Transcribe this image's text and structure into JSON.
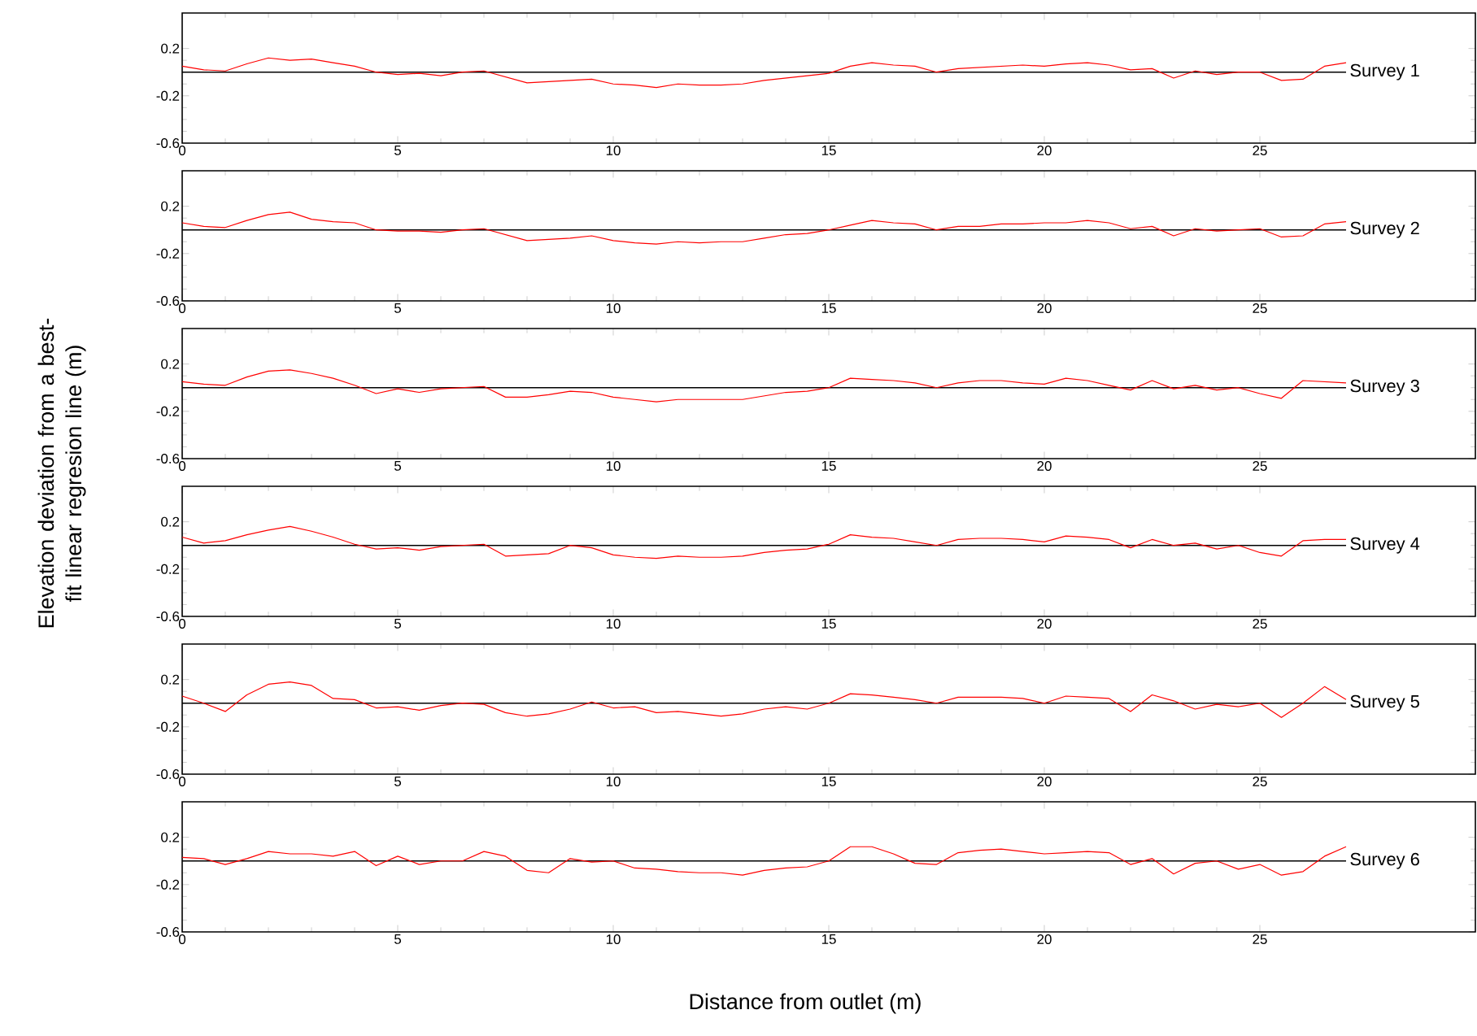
{
  "chart_data": [
    {
      "type": "line",
      "xlim": [
        0,
        30
      ],
      "ylim": [
        -0.6,
        0.5
      ],
      "xticks": [
        0,
        5,
        10,
        15,
        20,
        25
      ],
      "yticks": [
        -0.6,
        -0.2,
        0.2
      ],
      "x": [
        0,
        0.5,
        1,
        1.5,
        2,
        2.5,
        3,
        3.5,
        4,
        4.5,
        5,
        5.5,
        6,
        6.5,
        7,
        7.5,
        8,
        8.5,
        9,
        9.5,
        10,
        10.5,
        11,
        11.5,
        12,
        12.5,
        13,
        13.5,
        14,
        14.5,
        15,
        15.5,
        16,
        16.5,
        17,
        17.5,
        18,
        18.5,
        19,
        19.5,
        20,
        20.5,
        21,
        21.5,
        22,
        22.5,
        23,
        23.5,
        24,
        24.5,
        25,
        25.5,
        26,
        26.5,
        27
      ],
      "series": [
        {
          "color": "#ff0000",
          "values": [
            0.05,
            0.02,
            0.01,
            0.07,
            0.12,
            0.1,
            0.11,
            0.08,
            0.05,
            0.0,
            -0.02,
            -0.01,
            -0.03,
            0.0,
            0.01,
            -0.04,
            -0.09,
            -0.08,
            -0.07,
            -0.06,
            -0.1,
            -0.11,
            -0.13,
            -0.1,
            -0.11,
            -0.11,
            -0.1,
            -0.07,
            -0.05,
            -0.03,
            -0.01,
            0.05,
            0.08,
            0.06,
            0.05,
            0.0,
            0.03,
            0.04,
            0.05,
            0.06,
            0.05,
            0.07,
            0.08,
            0.06,
            0.02,
            0.03,
            -0.05,
            0.01,
            -0.02,
            0.0,
            0.0,
            -0.07,
            -0.06,
            0.05,
            0.08
          ]
        }
      ],
      "ref_lines": [
        {
          "axis": "y",
          "value": 0,
          "label": "Survey 1",
          "color": "#000000"
        }
      ]
    },
    {
      "type": "line",
      "xlim": [
        0,
        30
      ],
      "ylim": [
        -0.6,
        0.5
      ],
      "xticks": [
        0,
        5,
        10,
        15,
        20,
        25
      ],
      "yticks": [
        -0.6,
        -0.2,
        0.2
      ],
      "x": [
        0,
        0.5,
        1,
        1.5,
        2,
        2.5,
        3,
        3.5,
        4,
        4.5,
        5,
        5.5,
        6,
        6.5,
        7,
        7.5,
        8,
        8.5,
        9,
        9.5,
        10,
        10.5,
        11,
        11.5,
        12,
        12.5,
        13,
        13.5,
        14,
        14.5,
        15,
        15.5,
        16,
        16.5,
        17,
        17.5,
        18,
        18.5,
        19,
        19.5,
        20,
        20.5,
        21,
        21.5,
        22,
        22.5,
        23,
        23.5,
        24,
        24.5,
        25,
        25.5,
        26,
        26.5,
        27
      ],
      "series": [
        {
          "color": "#ff0000",
          "values": [
            0.06,
            0.03,
            0.02,
            0.08,
            0.13,
            0.15,
            0.09,
            0.07,
            0.06,
            0.0,
            -0.01,
            -0.01,
            -0.02,
            0.0,
            0.01,
            -0.04,
            -0.09,
            -0.08,
            -0.07,
            -0.05,
            -0.09,
            -0.11,
            -0.12,
            -0.1,
            -0.11,
            -0.1,
            -0.1,
            -0.07,
            -0.04,
            -0.03,
            0.0,
            0.04,
            0.08,
            0.06,
            0.05,
            0.0,
            0.03,
            0.03,
            0.05,
            0.05,
            0.06,
            0.06,
            0.08,
            0.06,
            0.01,
            0.03,
            -0.05,
            0.01,
            -0.01,
            0.0,
            0.01,
            -0.06,
            -0.05,
            0.05,
            0.07
          ]
        }
      ],
      "ref_lines": [
        {
          "axis": "y",
          "value": 0,
          "label": "Survey 2",
          "color": "#000000"
        }
      ]
    },
    {
      "type": "line",
      "xlim": [
        0,
        30
      ],
      "ylim": [
        -0.6,
        0.5
      ],
      "xticks": [
        0,
        5,
        10,
        15,
        20,
        25
      ],
      "yticks": [
        -0.6,
        -0.2,
        0.2
      ],
      "ylabel": "Elevation deviation from a best-fit linear regresion line (m)",
      "x": [
        0,
        0.5,
        1,
        1.5,
        2,
        2.5,
        3,
        3.5,
        4,
        4.5,
        5,
        5.5,
        6,
        6.5,
        7,
        7.5,
        8,
        8.5,
        9,
        9.5,
        10,
        10.5,
        11,
        11.5,
        12,
        12.5,
        13,
        13.5,
        14,
        14.5,
        15,
        15.5,
        16,
        16.5,
        17,
        17.5,
        18,
        18.5,
        19,
        19.5,
        20,
        20.5,
        21,
        21.5,
        22,
        22.5,
        23,
        23.5,
        24,
        24.5,
        25,
        25.5,
        26,
        26.5,
        27
      ],
      "series": [
        {
          "color": "#ff0000",
          "values": [
            0.05,
            0.03,
            0.02,
            0.09,
            0.14,
            0.15,
            0.12,
            0.08,
            0.02,
            -0.05,
            -0.01,
            -0.04,
            -0.01,
            0.0,
            0.01,
            -0.08,
            -0.08,
            -0.06,
            -0.03,
            -0.04,
            -0.08,
            -0.1,
            -0.12,
            -0.1,
            -0.1,
            -0.1,
            -0.1,
            -0.07,
            -0.04,
            -0.03,
            0.0,
            0.08,
            0.07,
            0.06,
            0.04,
            0.0,
            0.04,
            0.06,
            0.06,
            0.04,
            0.03,
            0.08,
            0.06,
            0.02,
            -0.02,
            0.06,
            -0.01,
            0.02,
            -0.02,
            0.0,
            -0.05,
            -0.09,
            0.06,
            0.05,
            0.04
          ]
        }
      ],
      "ref_lines": [
        {
          "axis": "y",
          "value": 0,
          "label": "Survey 3",
          "color": "#000000"
        }
      ]
    },
    {
      "type": "line",
      "xlim": [
        0,
        30
      ],
      "ylim": [
        -0.6,
        0.5
      ],
      "xticks": [
        0,
        5,
        10,
        15,
        20,
        25
      ],
      "yticks": [
        -0.6,
        -0.2,
        0.2
      ],
      "x": [
        0,
        0.5,
        1,
        1.5,
        2,
        2.5,
        3,
        3.5,
        4,
        4.5,
        5,
        5.5,
        6,
        6.5,
        7,
        7.5,
        8,
        8.5,
        9,
        9.5,
        10,
        10.5,
        11,
        11.5,
        12,
        12.5,
        13,
        13.5,
        14,
        14.5,
        15,
        15.5,
        16,
        16.5,
        17,
        17.5,
        18,
        18.5,
        19,
        19.5,
        20,
        20.5,
        21,
        21.5,
        22,
        22.5,
        23,
        23.5,
        24,
        24.5,
        25,
        25.5,
        26,
        26.5,
        27
      ],
      "series": [
        {
          "color": "#ff0000",
          "values": [
            0.07,
            0.02,
            0.04,
            0.09,
            0.13,
            0.16,
            0.12,
            0.07,
            0.01,
            -0.03,
            -0.02,
            -0.04,
            -0.01,
            0.0,
            0.01,
            -0.09,
            -0.08,
            -0.07,
            0.0,
            -0.02,
            -0.08,
            -0.1,
            -0.11,
            -0.09,
            -0.1,
            -0.1,
            -0.09,
            -0.06,
            -0.04,
            -0.03,
            0.01,
            0.09,
            0.07,
            0.06,
            0.03,
            0.0,
            0.05,
            0.06,
            0.06,
            0.05,
            0.03,
            0.08,
            0.07,
            0.05,
            -0.02,
            0.05,
            0.0,
            0.02,
            -0.03,
            0.0,
            -0.06,
            -0.09,
            0.04,
            0.05,
            0.05
          ]
        }
      ],
      "ref_lines": [
        {
          "axis": "y",
          "value": 0,
          "label": "Survey 4",
          "color": "#000000"
        }
      ]
    },
    {
      "type": "line",
      "xlim": [
        0,
        30
      ],
      "ylim": [
        -0.6,
        0.5
      ],
      "xticks": [
        0,
        5,
        10,
        15,
        20,
        25
      ],
      "yticks": [
        -0.6,
        -0.2,
        0.2
      ],
      "x": [
        0,
        0.5,
        1,
        1.5,
        2,
        2.5,
        3,
        3.5,
        4,
        4.5,
        5,
        5.5,
        6,
        6.5,
        7,
        7.5,
        8,
        8.5,
        9,
        9.5,
        10,
        10.5,
        11,
        11.5,
        12,
        12.5,
        13,
        13.5,
        14,
        14.5,
        15,
        15.5,
        16,
        16.5,
        17,
        17.5,
        18,
        18.5,
        19,
        19.5,
        20,
        20.5,
        21,
        21.5,
        22,
        22.5,
        23,
        23.5,
        24,
        24.5,
        25,
        25.5,
        26,
        26.5,
        27
      ],
      "series": [
        {
          "color": "#ff0000",
          "values": [
            0.06,
            0.0,
            -0.07,
            0.07,
            0.16,
            0.18,
            0.15,
            0.04,
            0.03,
            -0.04,
            -0.03,
            -0.06,
            -0.02,
            0.0,
            -0.01,
            -0.08,
            -0.11,
            -0.09,
            -0.05,
            0.01,
            -0.04,
            -0.03,
            -0.08,
            -0.07,
            -0.09,
            -0.11,
            -0.09,
            -0.05,
            -0.03,
            -0.05,
            0.0,
            0.08,
            0.07,
            0.05,
            0.03,
            0.0,
            0.05,
            0.05,
            0.05,
            0.04,
            0.0,
            0.06,
            0.05,
            0.04,
            -0.07,
            0.07,
            0.02,
            -0.05,
            -0.01,
            -0.03,
            0.0,
            -0.12,
            0.0,
            0.14,
            0.03
          ]
        }
      ],
      "ref_lines": [
        {
          "axis": "y",
          "value": 0,
          "label": "Survey 5",
          "color": "#000000"
        }
      ]
    },
    {
      "type": "line",
      "xlim": [
        0,
        30
      ],
      "ylim": [
        -0.6,
        0.5
      ],
      "xticks": [
        0,
        5,
        10,
        15,
        20,
        25
      ],
      "yticks": [
        -0.6,
        -0.2,
        0.2
      ],
      "xlabel": "Distance from outlet (m)",
      "x": [
        0,
        0.5,
        1,
        1.5,
        2,
        2.5,
        3,
        3.5,
        4,
        4.5,
        5,
        5.5,
        6,
        6.5,
        7,
        7.5,
        8,
        8.5,
        9,
        9.5,
        10,
        10.5,
        11,
        11.5,
        12,
        12.5,
        13,
        13.5,
        14,
        14.5,
        15,
        15.5,
        16,
        16.5,
        17,
        17.5,
        18,
        18.5,
        19,
        19.5,
        20,
        20.5,
        21,
        21.5,
        22,
        22.5,
        23,
        23.5,
        24,
        24.5,
        25,
        25.5,
        26,
        26.5,
        27
      ],
      "series": [
        {
          "color": "#ff0000",
          "values": [
            0.03,
            0.02,
            -0.03,
            0.02,
            0.08,
            0.06,
            0.06,
            0.04,
            0.08,
            -0.04,
            0.04,
            -0.03,
            0.0,
            0.0,
            0.08,
            0.04,
            -0.08,
            -0.1,
            0.02,
            -0.01,
            0.0,
            -0.06,
            -0.07,
            -0.09,
            -0.1,
            -0.1,
            -0.12,
            -0.08,
            -0.06,
            -0.05,
            0.0,
            0.12,
            0.12,
            0.06,
            -0.02,
            -0.03,
            0.07,
            0.09,
            0.1,
            0.08,
            0.06,
            0.07,
            0.08,
            0.07,
            -0.03,
            0.02,
            -0.11,
            -0.02,
            0.0,
            -0.07,
            -0.03,
            -0.12,
            -0.09,
            0.04,
            0.12
          ]
        }
      ],
      "ref_lines": [
        {
          "axis": "y",
          "value": 0,
          "label": "Survey 6",
          "color": "#000000"
        }
      ]
    }
  ]
}
